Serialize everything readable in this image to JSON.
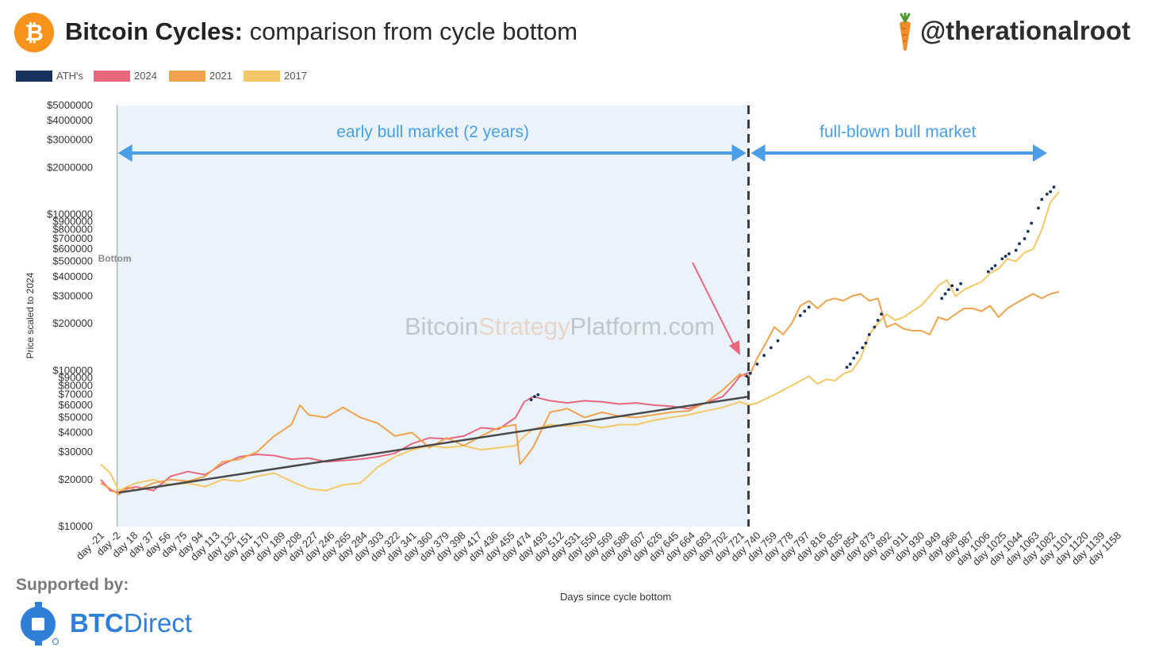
{
  "header": {
    "title_bold": "Bitcoin Cycles:",
    "title_rest": " comparison from cycle bottom",
    "handle": "@therationalroot",
    "logo_glyph": "₿"
  },
  "legend": [
    {
      "label": "ATH's",
      "color": "#15335c"
    },
    {
      "label": "2024",
      "color": "#e8687e"
    },
    {
      "label": "2021",
      "color": "#f0a24c"
    },
    {
      "label": "2017",
      "color": "#f5c865"
    }
  ],
  "footer": {
    "supported_by": "Supported by:",
    "brand_bold": "BTC",
    "brand_rest": "Direct",
    "brand_color": "#2f7fd8"
  },
  "chart_data": {
    "type": "line",
    "ylabel": "Price scaled to 2024",
    "xlabel": "Days since cycle bottom",
    "yscale": "log",
    "ylim": [
      10000,
      5000000
    ],
    "xlim": [
      -21,
      1158
    ],
    "yticks": [
      {
        "value": 10000,
        "label": "$10000"
      },
      {
        "value": 20000,
        "label": "$20000"
      },
      {
        "value": 30000,
        "label": "$30000"
      },
      {
        "value": 40000,
        "label": "$40000"
      },
      {
        "value": 50000,
        "label": "$50000"
      },
      {
        "value": 60000,
        "label": "$60000"
      },
      {
        "value": 70000,
        "label": "$70000"
      },
      {
        "value": 80000,
        "label": "$80000"
      },
      {
        "value": 90000,
        "label": "$90000"
      },
      {
        "value": 100000,
        "label": "$100000"
      },
      {
        "value": 200000,
        "label": "$200000"
      },
      {
        "value": 300000,
        "label": "$300000"
      },
      {
        "value": 400000,
        "label": "$400000"
      },
      {
        "value": 500000,
        "label": "$500000"
      },
      {
        "value": 600000,
        "label": "$600000"
      },
      {
        "value": 700000,
        "label": "$700000"
      },
      {
        "value": 800000,
        "label": "$800000"
      },
      {
        "value": 900000,
        "label": "$900000"
      },
      {
        "value": 1000000,
        "label": "$1000000"
      },
      {
        "value": 2000000,
        "label": "$2000000"
      },
      {
        "value": 3000000,
        "label": "$3000000"
      },
      {
        "value": 4000000,
        "label": "$4000000"
      },
      {
        "value": 5000000,
        "label": "$5000000"
      }
    ],
    "xticks": [
      "day -21",
      "day -2",
      "day 18",
      "day 37",
      "day 56",
      "day 75",
      "day 94",
      "day 113",
      "day 132",
      "day 151",
      "day 170",
      "day 189",
      "day 208",
      "day 227",
      "day 246",
      "day 265",
      "day 284",
      "day 303",
      "day 322",
      "day 341",
      "day 360",
      "day 379",
      "day 398",
      "day 417",
      "day 436",
      "day 455",
      "day 474",
      "day 493",
      "day 512",
      "day 531",
      "day 550",
      "day 569",
      "day 588",
      "day 607",
      "day 626",
      "day 645",
      "day 664",
      "day 683",
      "day 702",
      "day 721",
      "day 740",
      "day 759",
      "day 778",
      "day 797",
      "day 816",
      "day 835",
      "day 854",
      "day 873",
      "day 892",
      "day 911",
      "day 930",
      "day 949",
      "day 968",
      "day 987",
      "day 1006",
      "day 1025",
      "day 1044",
      "day 1063",
      "day 1082",
      "day 1101",
      "day 1120",
      "day 1139",
      "day 1158"
    ],
    "xtick_values": [
      -21,
      -2,
      18,
      37,
      56,
      75,
      94,
      113,
      132,
      151,
      170,
      189,
      208,
      227,
      246,
      265,
      284,
      303,
      322,
      341,
      360,
      379,
      398,
      417,
      436,
      455,
      474,
      493,
      512,
      531,
      550,
      569,
      588,
      607,
      626,
      645,
      664,
      683,
      702,
      721,
      740,
      759,
      778,
      797,
      816,
      835,
      854,
      873,
      892,
      911,
      930,
      949,
      968,
      987,
      1006,
      1025,
      1044,
      1063,
      1082,
      1101,
      1120,
      1139,
      1158
    ],
    "series": [
      {
        "name": "2024",
        "color": "#e8687e",
        "x": [
          -21,
          -10,
          0,
          10,
          20,
          40,
          60,
          80,
          100,
          120,
          140,
          160,
          180,
          200,
          220,
          240,
          260,
          280,
          300,
          320,
          340,
          360,
          380,
          400,
          420,
          440,
          460,
          470,
          480,
          490,
          500,
          520,
          540,
          560,
          580,
          600,
          620,
          640,
          660,
          680,
          700,
          710,
          720,
          730
        ],
        "values": [
          20000,
          17000,
          16500,
          17500,
          18000,
          17000,
          21000,
          22500,
          21500,
          25000,
          28000,
          29000,
          28500,
          27000,
          27500,
          26000,
          26500,
          27000,
          28000,
          29500,
          34000,
          37000,
          36500,
          38000,
          43000,
          42000,
          50000,
          63000,
          68000,
          66000,
          64000,
          62000,
          64000,
          63000,
          61000,
          62000,
          60000,
          59000,
          57000,
          62000,
          68000,
          78000,
          92000,
          97000
        ]
      },
      {
        "name": "2021",
        "color": "#f0a24c",
        "x": [
          -21,
          -10,
          0,
          10,
          20,
          40,
          60,
          80,
          100,
          120,
          140,
          160,
          180,
          200,
          210,
          220,
          240,
          260,
          280,
          300,
          320,
          340,
          360,
          380,
          400,
          420,
          440,
          460,
          465,
          480,
          500,
          520,
          540,
          560,
          580,
          600,
          620,
          640,
          660,
          680,
          700,
          720,
          730,
          740,
          750,
          760,
          770,
          780,
          790,
          800,
          810,
          820,
          830,
          840,
          850,
          860,
          870,
          880,
          890,
          900,
          910,
          920,
          930,
          940,
          950,
          960,
          970,
          980,
          990,
          1000,
          1010,
          1020,
          1030,
          1040,
          1050,
          1060,
          1070,
          1080,
          1090
        ],
        "values": [
          19000,
          17500,
          16000,
          18000,
          17000,
          19000,
          20000,
          19500,
          21000,
          26000,
          27000,
          30000,
          38000,
          45000,
          60000,
          52000,
          50000,
          58000,
          50000,
          46000,
          38000,
          40000,
          32000,
          37000,
          33000,
          38000,
          43000,
          45000,
          25000,
          32000,
          54000,
          57000,
          50000,
          54000,
          51000,
          50000,
          52000,
          54000,
          55000,
          62000,
          75000,
          95000,
          90000,
          120000,
          150000,
          190000,
          170000,
          200000,
          260000,
          280000,
          250000,
          280000,
          290000,
          280000,
          300000,
          310000,
          280000,
          290000,
          190000,
          200000,
          185000,
          180000,
          180000,
          170000,
          220000,
          210000,
          230000,
          250000,
          250000,
          240000,
          260000,
          220000,
          250000,
          270000,
          290000,
          310000,
          290000,
          310000,
          320000
        ]
      },
      {
        "name": "2017",
        "color": "#f5c865",
        "x": [
          -21,
          -10,
          0,
          10,
          20,
          40,
          60,
          80,
          100,
          120,
          140,
          160,
          180,
          200,
          220,
          240,
          260,
          280,
          300,
          320,
          340,
          360,
          380,
          400,
          420,
          440,
          460,
          470,
          480,
          500,
          520,
          540,
          560,
          580,
          600,
          620,
          640,
          660,
          680,
          700,
          720,
          730,
          740,
          760,
          780,
          800,
          810,
          820,
          830,
          840,
          850,
          860,
          870,
          880,
          890,
          900,
          910,
          920,
          930,
          940,
          950,
          960,
          970,
          980,
          990,
          1000,
          1010,
          1020,
          1030,
          1040,
          1050,
          1060,
          1070,
          1080,
          1090
        ],
        "values": [
          25000,
          22000,
          17000,
          18000,
          19000,
          20000,
          18500,
          19000,
          18000,
          20000,
          19500,
          21000,
          22000,
          19500,
          17500,
          17000,
          18500,
          19000,
          24000,
          28000,
          31000,
          33000,
          32000,
          33000,
          31000,
          32000,
          33000,
          38000,
          42000,
          45000,
          44000,
          45000,
          43000,
          45000,
          45000,
          48000,
          50000,
          52000,
          55000,
          58000,
          63000,
          60000,
          62000,
          70000,
          80000,
          92000,
          82000,
          88000,
          86000,
          95000,
          100000,
          120000,
          170000,
          200000,
          230000,
          210000,
          220000,
          240000,
          260000,
          300000,
          350000,
          380000,
          300000,
          330000,
          350000,
          370000,
          420000,
          450000,
          520000,
          500000,
          570000,
          600000,
          800000,
          1200000,
          1400000
        ]
      },
      {
        "name": "ATH's",
        "color": "#15335c",
        "x": [
          478,
          482,
          486,
          728,
          732,
          740,
          748,
          756,
          764,
          790,
          795,
          800,
          844,
          848,
          852,
          856,
          862,
          866,
          870,
          876,
          880,
          884,
          954,
          958,
          962,
          966,
          972,
          976,
          1008,
          1012,
          1016,
          1024,
          1028,
          1032,
          1040,
          1044,
          1050,
          1054,
          1058,
          1066,
          1070,
          1076,
          1080,
          1084
        ],
        "values": [
          65000,
          68000,
          70000,
          92000,
          96000,
          110000,
          125000,
          140000,
          155000,
          225000,
          240000,
          255000,
          105000,
          110000,
          120000,
          130000,
          140000,
          150000,
          170000,
          190000,
          210000,
          230000,
          290000,
          310000,
          330000,
          350000,
          330000,
          360000,
          430000,
          450000,
          470000,
          520000,
          540000,
          560000,
          590000,
          650000,
          700000,
          780000,
          880000,
          1100000,
          1250000,
          1350000,
          1400000,
          1500000
        ]
      }
    ],
    "trendline": {
      "x": [
        0,
        730
      ],
      "values": [
        16500,
        68000
      ],
      "color": "#4a4a4a"
    },
    "annotations": {
      "bottom_label": "Bottom",
      "bottom_x": -2,
      "split_x": 730,
      "early_label": "early bull market (2 years)",
      "late_label": "full-blown bull market",
      "shade_color": "#eaf3fc",
      "arrow_color": "#4a9ee8",
      "pointer_color": "#e8687e",
      "watermark_parts": [
        "Bitcoin",
        "Strategy",
        "Platform",
        ".com"
      ]
    }
  }
}
